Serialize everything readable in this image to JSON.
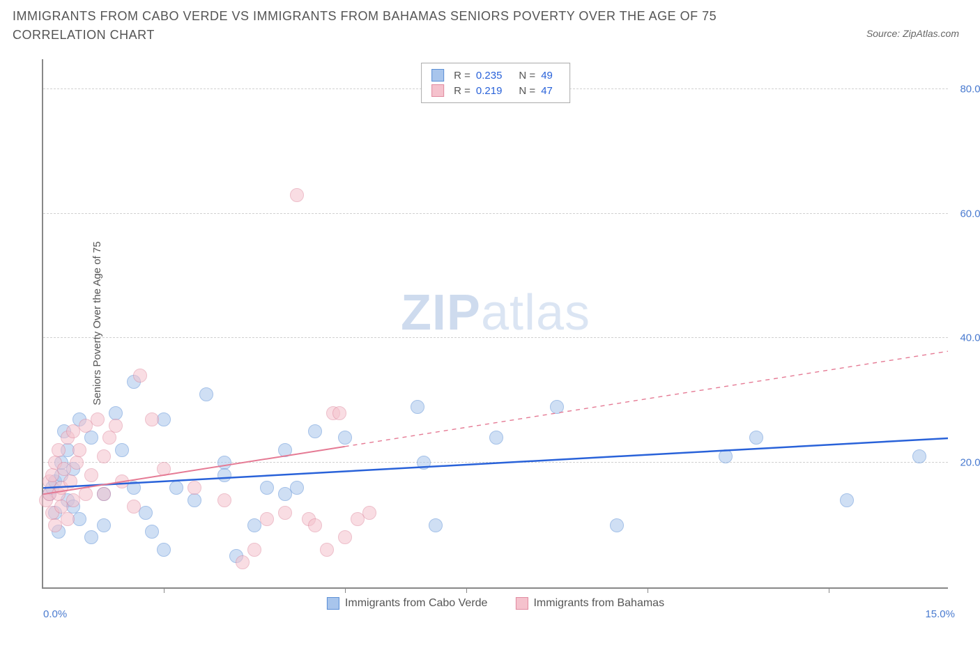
{
  "title": "IMMIGRANTS FROM CABO VERDE VS IMMIGRANTS FROM BAHAMAS SENIORS POVERTY OVER THE AGE OF 75 CORRELATION CHART",
  "source_label": "Source: ZipAtlas.com",
  "watermark_zip": "ZIP",
  "watermark_atlas": "atlas",
  "y_axis_title": "Seniors Poverty Over the Age of 75",
  "chart": {
    "type": "scatter",
    "xlim": [
      0,
      15
    ],
    "ylim": [
      0,
      85
    ],
    "x_min_label": "0.0%",
    "x_max_label": "15.0%",
    "y_ticks": [
      20,
      40,
      60,
      80
    ],
    "y_tick_labels": [
      "20.0%",
      "40.0%",
      "60.0%",
      "80.0%"
    ],
    "x_tick_positions": [
      2,
      5,
      7,
      10,
      13
    ],
    "background_color": "#ffffff",
    "grid_color": "#d0d0d0",
    "axis_color": "#888888",
    "marker_radius": 10,
    "marker_opacity": 0.55,
    "series": [
      {
        "name": "Immigrants from Cabo Verde",
        "color_fill": "#a8c5ec",
        "color_stroke": "#5b8fd6",
        "R": "0.235",
        "N": "49",
        "trend": {
          "x1": 0,
          "y1": 16,
          "x2": 15,
          "y2": 24,
          "solid_until_x": 15,
          "color": "#2962d9",
          "width": 2.5
        },
        "points": [
          [
            0.1,
            15
          ],
          [
            0.15,
            16
          ],
          [
            0.2,
            12
          ],
          [
            0.2,
            17
          ],
          [
            0.25,
            9
          ],
          [
            0.3,
            18
          ],
          [
            0.3,
            20
          ],
          [
            0.35,
            25
          ],
          [
            0.4,
            14
          ],
          [
            0.4,
            22
          ],
          [
            0.5,
            13
          ],
          [
            0.5,
            19
          ],
          [
            0.6,
            27
          ],
          [
            0.6,
            11
          ],
          [
            0.8,
            8
          ],
          [
            0.8,
            24
          ],
          [
            1.0,
            10
          ],
          [
            1.0,
            15
          ],
          [
            1.2,
            28
          ],
          [
            1.3,
            22
          ],
          [
            1.5,
            33
          ],
          [
            1.5,
            16
          ],
          [
            1.7,
            12
          ],
          [
            1.8,
            9
          ],
          [
            2.0,
            27
          ],
          [
            2.0,
            6
          ],
          [
            2.2,
            16
          ],
          [
            2.5,
            14
          ],
          [
            2.7,
            31
          ],
          [
            3.0,
            20
          ],
          [
            3.0,
            18
          ],
          [
            3.2,
            5
          ],
          [
            3.5,
            10
          ],
          [
            3.7,
            16
          ],
          [
            4.0,
            22
          ],
          [
            4.0,
            15
          ],
          [
            4.2,
            16
          ],
          [
            4.5,
            25
          ],
          [
            5.0,
            24
          ],
          [
            6.2,
            29
          ],
          [
            6.3,
            20
          ],
          [
            6.5,
            10
          ],
          [
            7.5,
            24
          ],
          [
            8.5,
            29
          ],
          [
            9.5,
            10
          ],
          [
            11.3,
            21
          ],
          [
            11.8,
            24
          ],
          [
            13.3,
            14
          ],
          [
            14.5,
            21
          ]
        ]
      },
      {
        "name": "Immigrants from Bahamas",
        "color_fill": "#f5c2cd",
        "color_stroke": "#e08ba0",
        "R": "0.219",
        "N": "47",
        "trend": {
          "x1": 0,
          "y1": 15,
          "x2": 15,
          "y2": 38,
          "solid_until_x": 5,
          "color": "#e57a94",
          "width": 2
        },
        "points": [
          [
            0.05,
            14
          ],
          [
            0.1,
            15
          ],
          [
            0.1,
            17
          ],
          [
            0.15,
            12
          ],
          [
            0.15,
            18
          ],
          [
            0.2,
            10
          ],
          [
            0.2,
            20
          ],
          [
            0.25,
            15
          ],
          [
            0.25,
            22
          ],
          [
            0.3,
            16
          ],
          [
            0.3,
            13
          ],
          [
            0.35,
            19
          ],
          [
            0.4,
            11
          ],
          [
            0.4,
            24
          ],
          [
            0.45,
            17
          ],
          [
            0.5,
            25
          ],
          [
            0.5,
            14
          ],
          [
            0.55,
            20
          ],
          [
            0.6,
            22
          ],
          [
            0.7,
            26
          ],
          [
            0.7,
            15
          ],
          [
            0.8,
            18
          ],
          [
            0.9,
            27
          ],
          [
            1.0,
            21
          ],
          [
            1.0,
            15
          ],
          [
            1.1,
            24
          ],
          [
            1.2,
            26
          ],
          [
            1.3,
            17
          ],
          [
            1.5,
            13
          ],
          [
            1.6,
            34
          ],
          [
            1.8,
            27
          ],
          [
            2.0,
            19
          ],
          [
            2.5,
            16
          ],
          [
            3.0,
            14
          ],
          [
            3.3,
            4
          ],
          [
            3.5,
            6
          ],
          [
            3.7,
            11
          ],
          [
            4.0,
            12
          ],
          [
            4.2,
            63
          ],
          [
            4.4,
            11
          ],
          [
            4.5,
            10
          ],
          [
            4.7,
            6
          ],
          [
            4.8,
            28
          ],
          [
            4.9,
            28
          ],
          [
            5.0,
            8
          ],
          [
            5.2,
            11
          ],
          [
            5.4,
            12
          ]
        ]
      }
    ]
  },
  "legend_r_label": "R =",
  "legend_n_label": "N ="
}
